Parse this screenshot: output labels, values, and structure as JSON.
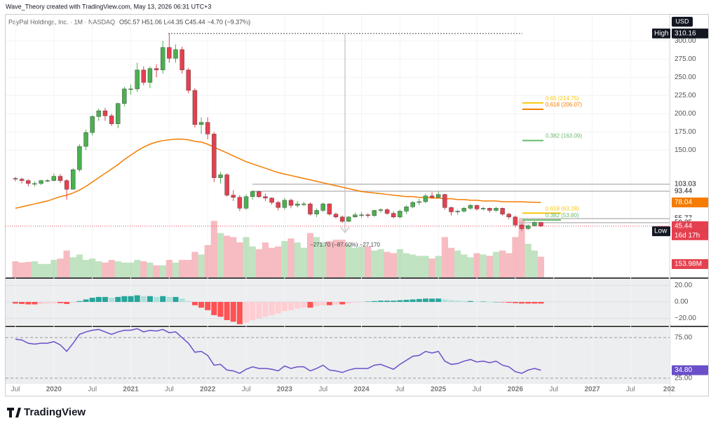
{
  "header": {
    "credit": "Wave_Theory created with TradingView.com, May 13, 2026 06:31 UTC+3"
  },
  "footer": {
    "brand": "TradingView"
  },
  "chart_data": {
    "type": "candlestick",
    "title": "PayPal Holdings, Inc. · 1M · NASDAQ",
    "subtitle": "O50.57 H51.06 L44.35 C45.44 −4.70 (−9.37%)",
    "currency": "USD",
    "colors": {
      "up": "#4caf50",
      "down": "#e5404f"
    },
    "open": [
      111,
      110,
      108,
      104,
      104,
      108,
      108,
      114,
      108,
      96,
      123,
      155,
      174,
      196,
      204,
      197,
      186,
      214,
      234,
      234,
      260,
      243,
      262,
      260,
      291,
      276,
      288,
      260,
      232,
      185,
      188,
      172,
      112,
      116,
      88,
      85,
      70,
      86,
      93,
      86,
      84,
      78,
      71,
      81,
      74,
      76,
      76,
      62,
      67,
      76,
      62,
      58,
      52,
      58,
      61,
      61,
      60,
      67,
      68,
      63,
      58,
      66,
      72,
      78,
      79,
      87,
      85,
      89,
      71,
      65,
      66,
      70,
      74,
      69,
      70,
      67,
      70,
      62,
      58,
      47,
      42,
      46,
      50.57
    ],
    "high": [
      113,
      112,
      110,
      107,
      109,
      110,
      118,
      117,
      110,
      125,
      158,
      178,
      198,
      207,
      208,
      200,
      215,
      237,
      240,
      270,
      265,
      265,
      268,
      300,
      310.16,
      295,
      292,
      263,
      235,
      195,
      195,
      175,
      120,
      118,
      95,
      88,
      89,
      95,
      94,
      90,
      85,
      80,
      84,
      83,
      80,
      79,
      78,
      70,
      78,
      77,
      64,
      60,
      59,
      64,
      65,
      63,
      68,
      70,
      70,
      66,
      68,
      74,
      80,
      83,
      90,
      92,
      93,
      90,
      72,
      68,
      72,
      76,
      75,
      72,
      71,
      72,
      71,
      64,
      60,
      49,
      48,
      52,
      51.06
    ],
    "low": [
      107,
      104,
      100,
      100,
      102,
      106,
      107,
      105,
      82,
      96,
      120,
      150,
      170,
      190,
      190,
      183,
      180,
      210,
      226,
      230,
      239,
      235,
      250,
      255,
      270,
      270,
      255,
      228,
      181,
      172,
      165,
      106,
      104,
      86,
      80,
      66,
      68,
      82,
      84,
      80,
      75,
      67,
      68,
      70,
      71,
      73,
      60,
      58,
      65,
      60,
      56,
      50,
      51,
      57,
      57,
      57,
      58,
      64,
      61,
      56,
      56,
      62,
      70,
      74,
      77,
      83,
      84,
      68,
      60,
      61,
      64,
      68,
      67,
      67,
      64,
      65,
      60,
      55,
      44,
      38.46,
      40,
      45,
      44.35
    ],
    "close": [
      110,
      108,
      104,
      104,
      108,
      108,
      114,
      108,
      96,
      123,
      155,
      174,
      196,
      204,
      197,
      186,
      214,
      234,
      234,
      260,
      243,
      262,
      260,
      291,
      276,
      288,
      260,
      232,
      185,
      188,
      172,
      112,
      116,
      88,
      85,
      70,
      86,
      93,
      86,
      84,
      78,
      71,
      81,
      74,
      76,
      76,
      62,
      67,
      76,
      62,
      58,
      52,
      58,
      61,
      61,
      60,
      67,
      68,
      63,
      58,
      66,
      72,
      78,
      79,
      87,
      85,
      89,
      71,
      65,
      66,
      70,
      74,
      69,
      70,
      67,
      70,
      62,
      58,
      47,
      42,
      46,
      50.57,
      45.44
    ],
    "close_last_label": "45.44",
    "countdown": "16d 17h",
    "ylim": [
      -25,
      335
    ],
    "yticks": [
      {
        "value": 150,
        "label": "150.00"
      },
      {
        "value": 175,
        "label": "175.00"
      },
      {
        "value": 200,
        "label": "200.00"
      },
      {
        "value": 225,
        "label": "225.00"
      },
      {
        "value": 250,
        "label": "250.00"
      },
      {
        "value": 275,
        "label": "275.00"
      },
      {
        "value": 300,
        "label": "300.00"
      }
    ],
    "price_levels": [
      {
        "value": 310.16,
        "label": "310.16",
        "tag": "High"
      },
      {
        "value": 103.03,
        "label": "103.03"
      },
      {
        "value": 93.44,
        "label": "93.44"
      },
      {
        "value": 55.77,
        "label": "55.77"
      },
      {
        "value": 50.25,
        "label": "50.25"
      },
      {
        "value": 38.46,
        "label": "38.46",
        "tag": "Low"
      }
    ],
    "sma": {
      "color": "#f57c00",
      "last_label": "78.04",
      "values": [
        70,
        72,
        74,
        76,
        78,
        80,
        83,
        86,
        88,
        91,
        95,
        100,
        106,
        112,
        118,
        124,
        130,
        137,
        143,
        149,
        154,
        158,
        161,
        163,
        164,
        165,
        165,
        164,
        162,
        161,
        158,
        154,
        150,
        146,
        142,
        138,
        134,
        131,
        128,
        125,
        122,
        119,
        117,
        115,
        113,
        111,
        109,
        107,
        105,
        103,
        101,
        99,
        97,
        95,
        93,
        92,
        91,
        90,
        89,
        88,
        87,
        86,
        86,
        85,
        85,
        84,
        84,
        83,
        83,
        82,
        82,
        81,
        81,
        80,
        80,
        80,
        79,
        79,
        79,
        78.8,
        78.5,
        78.2,
        78.04
      ]
    },
    "fib_levels": [
      {
        "value": 214.75,
        "label": "0.65 (214.75)",
        "color": "#f9c80e"
      },
      {
        "value": 206.07,
        "label": "0.618 (206.07)",
        "color": "#f57c00"
      },
      {
        "value": 163.09,
        "label": "0.382 (163.09)",
        "color": "#66bb6a"
      },
      {
        "value": 63.28,
        "label": "0.618 (63.28)",
        "color": "#f9c80e"
      },
      {
        "value": 53.8,
        "label": "0.382 (53.80)",
        "color": "#66bb6a"
      }
    ],
    "annotation": "−271.70 (−87.60%) −27,170",
    "volume": {
      "ylim": [
        0,
        500
      ],
      "last_label": "153.98M",
      "values": [
        120,
        110,
        115,
        120,
        100,
        100,
        130,
        140,
        200,
        150,
        170,
        130,
        140,
        120,
        110,
        130,
        120,
        110,
        110,
        130,
        120,
        110,
        90,
        90,
        130,
        110,
        130,
        130,
        190,
        170,
        240,
        420,
        330,
        310,
        300,
        260,
        300,
        230,
        210,
        260,
        220,
        230,
        270,
        290,
        260,
        220,
        330,
        300,
        260,
        270,
        280,
        280,
        240,
        220,
        230,
        230,
        200,
        210,
        190,
        180,
        210,
        180,
        170,
        160,
        160,
        140,
        160,
        300,
        220,
        200,
        170,
        150,
        180,
        170,
        160,
        190,
        200,
        180,
        300,
        430,
        250,
        200,
        153.98
      ]
    },
    "macd": {
      "ylim": [
        -28,
        28
      ],
      "yticks": [
        {
          "value": 20,
          "label": "20.00"
        },
        {
          "value": 0,
          "label": "0.00"
        },
        {
          "value": -20,
          "label": "−20.00"
        }
      ],
      "values": [
        -2,
        -2.5,
        -3,
        -3,
        -2.5,
        -2,
        -1.5,
        -1.5,
        -2.5,
        -1,
        1,
        3,
        5,
        6,
        6,
        5,
        6,
        7,
        7,
        8,
        7,
        7,
        6,
        7,
        6,
        6,
        4,
        1,
        -4,
        -7,
        -10,
        -16,
        -18,
        -22,
        -24,
        -27,
        -25,
        -22,
        -20,
        -18,
        -16,
        -14,
        -11,
        -10,
        -8,
        -7,
        -7,
        -5,
        -4,
        -4,
        -3,
        -3,
        -2,
        -1,
        -0.5,
        0.5,
        1,
        1.5,
        1.5,
        1.5,
        2,
        2.5,
        3,
        3.5,
        4,
        4,
        4,
        3,
        2,
        1.5,
        1,
        1,
        0.5,
        0.5,
        0,
        0,
        -0.5,
        -1,
        -1.5,
        -2,
        -2,
        -2,
        -2
      ]
    },
    "rsi": {
      "color": "#6a4fc8",
      "ylim": [
        18,
        87
      ],
      "last_label": "34.80",
      "yticks": [
        {
          "value": 75,
          "label": "75.00"
        },
        {
          "value": 25,
          "label": "25.00"
        }
      ],
      "values": [
        73,
        72,
        68,
        67,
        68,
        68,
        70,
        66,
        58,
        68,
        79,
        82,
        84,
        85,
        82,
        79,
        82,
        84,
        84,
        86,
        82,
        84,
        83,
        85,
        81,
        82,
        75,
        68,
        57,
        58,
        53,
        41,
        42,
        35,
        34,
        31,
        36,
        39,
        37,
        37,
        36,
        34,
        40,
        37,
        39,
        39,
        34,
        37,
        41,
        35,
        34,
        32,
        35,
        37,
        37,
        37,
        41,
        42,
        39,
        36,
        42,
        47,
        52,
        53,
        58,
        56,
        58,
        46,
        42,
        43,
        46,
        48,
        45,
        46,
        44,
        46,
        41,
        39,
        33,
        31,
        35,
        37,
        34.8
      ]
    },
    "xticks": [
      {
        "value": 0,
        "label": "Jul"
      },
      {
        "value": 6,
        "label": "2020"
      },
      {
        "value": 12,
        "label": "Jul"
      },
      {
        "value": 18,
        "label": "2021"
      },
      {
        "value": 24,
        "label": "Jul"
      },
      {
        "value": 30,
        "label": "2022"
      },
      {
        "value": 36,
        "label": "Jul"
      },
      {
        "value": 42,
        "label": "2023"
      },
      {
        "value": 48,
        "label": "Jul"
      },
      {
        "value": 54,
        "label": "2024"
      },
      {
        "value": 60,
        "label": "Jul"
      },
      {
        "value": 66,
        "label": "2025"
      },
      {
        "value": 72,
        "label": "Jul"
      },
      {
        "value": 78,
        "label": "2026"
      },
      {
        "value": 84,
        "label": "Jul"
      },
      {
        "value": 90,
        "label": "2027"
      },
      {
        "value": 96,
        "label": "Jul"
      },
      {
        "value": 102,
        "label": "202"
      }
    ]
  }
}
